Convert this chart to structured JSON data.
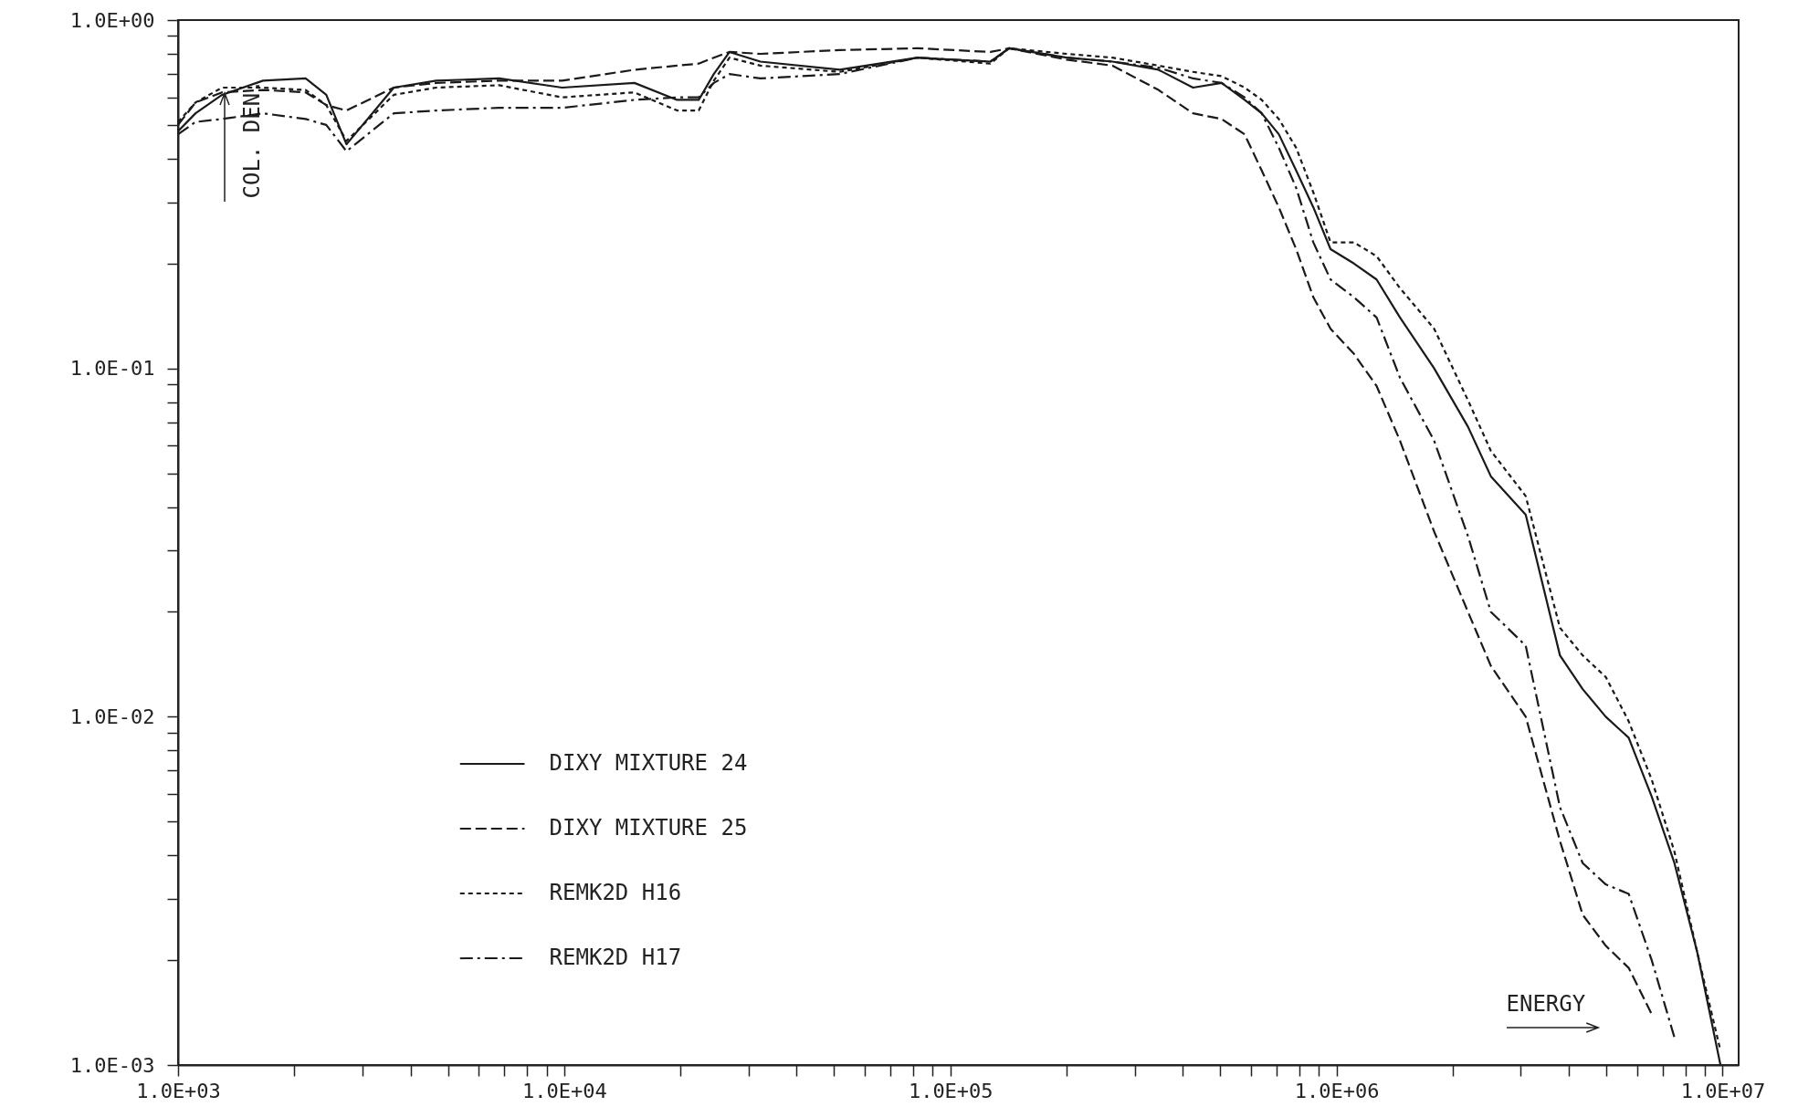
{
  "chart_data": {
    "type": "line",
    "xlabel": "ENERGY",
    "ylabel": "COL. DEN.",
    "log": "xy",
    "grid": false,
    "legend": "bottom left",
    "xlim": [
      1000,
      11000000
    ],
    "ylim": [
      0.001,
      1
    ],
    "xticks": [
      {
        "value": 1000,
        "label": "1.0E+03"
      },
      {
        "value": 2000,
        "label": null
      },
      {
        "value": 3000,
        "label": null
      },
      {
        "value": 4000,
        "label": null
      },
      {
        "value": 5000,
        "label": null
      },
      {
        "value": 6000,
        "label": null
      },
      {
        "value": 7000,
        "label": null
      },
      {
        "value": 8000,
        "label": null
      },
      {
        "value": 9000,
        "label": null
      },
      {
        "value": 10000,
        "label": "1.0E+04"
      },
      {
        "value": 20000,
        "label": null
      },
      {
        "value": 30000,
        "label": null
      },
      {
        "value": 40000,
        "label": null
      },
      {
        "value": 50000,
        "label": null
      },
      {
        "value": 60000,
        "label": null
      },
      {
        "value": 70000,
        "label": null
      },
      {
        "value": 80000,
        "label": null
      },
      {
        "value": 90000,
        "label": null
      },
      {
        "value": 100000,
        "label": "1.0E+05"
      },
      {
        "value": 200000,
        "label": null
      },
      {
        "value": 300000,
        "label": null
      },
      {
        "value": 400000,
        "label": null
      },
      {
        "value": 500000,
        "label": null
      },
      {
        "value": 600000,
        "label": null
      },
      {
        "value": 700000,
        "label": null
      },
      {
        "value": 800000,
        "label": null
      },
      {
        "value": 900000,
        "label": null
      },
      {
        "value": 1000000,
        "label": "1.0E+06"
      },
      {
        "value": 2000000,
        "label": null
      },
      {
        "value": 3000000,
        "label": null
      },
      {
        "value": 4000000,
        "label": null
      },
      {
        "value": 5000000,
        "label": null
      },
      {
        "value": 6000000,
        "label": null
      },
      {
        "value": 7000000,
        "label": null
      },
      {
        "value": 8000000,
        "label": null
      },
      {
        "value": 9000000,
        "label": null
      },
      {
        "value": 10000000,
        "label": "1.0E+07"
      }
    ],
    "yticks": [
      {
        "value": 0.001,
        "label": "1.0E-03"
      },
      {
        "value": 0.002,
        "label": null
      },
      {
        "value": 0.003,
        "label": null
      },
      {
        "value": 0.004,
        "label": null
      },
      {
        "value": 0.005,
        "label": null
      },
      {
        "value": 0.006,
        "label": null
      },
      {
        "value": 0.007,
        "label": null
      },
      {
        "value": 0.008,
        "label": null
      },
      {
        "value": 0.009,
        "label": null
      },
      {
        "value": 0.01,
        "label": "1.0E-02"
      },
      {
        "value": 0.02,
        "label": null
      },
      {
        "value": 0.03,
        "label": null
      },
      {
        "value": 0.04,
        "label": null
      },
      {
        "value": 0.05,
        "label": null
      },
      {
        "value": 0.06,
        "label": null
      },
      {
        "value": 0.07,
        "label": null
      },
      {
        "value": 0.08,
        "label": null
      },
      {
        "value": 0.09,
        "label": null
      },
      {
        "value": 0.1,
        "label": "1.0E-01"
      },
      {
        "value": 0.2,
        "label": null
      },
      {
        "value": 0.3,
        "label": null
      },
      {
        "value": 0.4,
        "label": null
      },
      {
        "value": 0.5,
        "label": null
      },
      {
        "value": 0.6,
        "label": null
      },
      {
        "value": 0.7,
        "label": null
      },
      {
        "value": 0.8,
        "label": null
      },
      {
        "value": 0.9,
        "label": null
      },
      {
        "value": 1,
        "label": "1.0E+00"
      }
    ],
    "x": [
      1000,
      1110,
      1300,
      1660,
      2140,
      2420,
      2730,
      3620,
      4660,
      6780,
      9880,
      15200,
      19600,
      22300,
      24400,
      26800,
      32200,
      51700,
      82300,
      127000,
      142000,
      200000,
      263000,
      346000,
      425000,
      504000,
      578000,
      640000,
      709000,
      786000,
      871000,
      965000,
      1110000,
      1270000,
      1460000,
      1790000,
      2190000,
      2510000,
      3090000,
      3790000,
      4340000,
      4980000,
      5710000,
      6550000,
      7500000,
      8600000,
      9870000
    ],
    "series": [
      {
        "name": "DIXY MIXTURE 24",
        "color": "#1a1a1a",
        "line_style": "solid",
        "values": [
          0.48,
          0.54,
          0.61,
          0.67,
          0.68,
          0.61,
          0.44,
          0.64,
          0.67,
          0.68,
          0.64,
          0.66,
          0.59,
          0.59,
          0.7,
          0.81,
          0.76,
          0.72,
          0.78,
          0.76,
          0.83,
          0.78,
          0.76,
          0.72,
          0.64,
          0.66,
          0.59,
          0.54,
          0.47,
          0.37,
          0.29,
          0.22,
          0.2,
          0.18,
          0.14,
          0.1,
          0.068,
          0.049,
          0.038,
          0.015,
          0.012,
          0.01,
          0.0087,
          0.0059,
          0.0038,
          0.0021,
          0.001
        ]
      },
      {
        "name": "DIXY MIXTURE 25",
        "color": "#1a1a1a",
        "line_style": "dashed",
        "values": [
          0.5,
          0.58,
          0.62,
          0.63,
          0.62,
          0.57,
          0.55,
          0.64,
          0.66,
          0.67,
          0.67,
          0.72,
          0.74,
          0.75,
          0.78,
          0.81,
          0.8,
          0.82,
          0.83,
          0.81,
          0.83,
          0.77,
          0.74,
          0.63,
          0.54,
          0.52,
          0.47,
          0.37,
          0.29,
          0.22,
          0.16,
          0.13,
          0.11,
          0.089,
          0.062,
          0.034,
          0.02,
          0.014,
          0.01,
          0.0044,
          0.0027,
          0.0022,
          0.0019,
          0.0014,
          null,
          null,
          null
        ]
      },
      {
        "name": "REMK2D H16",
        "color": "#1a1a1a",
        "line_style": "dotted",
        "values": [
          0.51,
          0.58,
          0.64,
          0.64,
          0.63,
          0.57,
          0.45,
          0.61,
          0.64,
          0.65,
          0.6,
          0.62,
          0.55,
          0.55,
          0.67,
          0.78,
          0.74,
          0.71,
          0.78,
          0.75,
          0.83,
          0.8,
          0.78,
          0.74,
          0.71,
          0.69,
          0.64,
          0.59,
          0.52,
          0.43,
          0.32,
          0.23,
          0.23,
          0.21,
          0.17,
          0.13,
          0.081,
          0.058,
          0.043,
          0.018,
          0.015,
          0.013,
          0.0097,
          0.0066,
          0.0041,
          0.0021,
          0.0011
        ]
      },
      {
        "name": "REMK2D H17",
        "color": "#1a1a1a",
        "line_style": "dashdot",
        "values": [
          0.47,
          0.51,
          0.52,
          0.54,
          0.52,
          0.5,
          0.42,
          0.54,
          0.55,
          0.56,
          0.56,
          0.59,
          0.6,
          0.6,
          0.66,
          0.7,
          0.68,
          0.7,
          0.78,
          0.76,
          0.83,
          0.78,
          0.76,
          0.73,
          0.68,
          0.66,
          0.6,
          0.54,
          0.43,
          0.33,
          0.23,
          0.18,
          0.16,
          0.14,
          0.094,
          0.062,
          0.033,
          0.02,
          0.016,
          0.0055,
          0.0038,
          0.0033,
          0.0031,
          0.002,
          0.0012,
          null,
          null
        ]
      }
    ]
  }
}
